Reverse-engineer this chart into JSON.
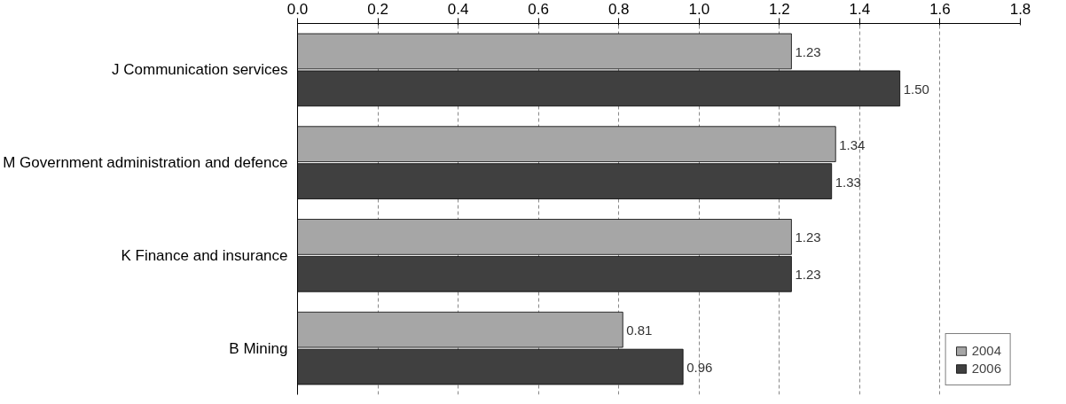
{
  "chart_data": {
    "type": "bar",
    "orientation": "horizontal",
    "categories": [
      "J Communication services",
      "M Government administration and defence",
      "K Finance and insurance",
      "B Mining"
    ],
    "series": [
      {
        "name": "2004",
        "color": "#a6a6a6",
        "values": [
          1.23,
          1.34,
          1.23,
          0.81
        ],
        "value_labels": [
          "1.23",
          "1.34",
          "1.23",
          "0.81"
        ]
      },
      {
        "name": "2006",
        "color": "#404040",
        "values": [
          1.5,
          1.33,
          1.23,
          0.96
        ],
        "value_labels": [
          "1.50",
          "1.33",
          "1.23",
          "0.96"
        ]
      }
    ],
    "xlim": [
      0,
      1.8
    ],
    "xticks": [
      {
        "value": 0,
        "label": "0.0"
      },
      {
        "value": 0.2,
        "label": "0.2"
      },
      {
        "value": 0.4,
        "label": "0.4"
      },
      {
        "value": 0.6,
        "label": "0.6"
      },
      {
        "value": 0.8,
        "label": "0.8"
      },
      {
        "value": 1.0,
        "label": "1.0"
      },
      {
        "value": 1.2,
        "label": "1.2"
      },
      {
        "value": 1.4,
        "label": "1.4"
      },
      {
        "value": 1.6,
        "label": "1.6"
      },
      {
        "value": 1.8,
        "label": "1.8"
      }
    ],
    "grid": "x",
    "legend": "bottom right"
  }
}
